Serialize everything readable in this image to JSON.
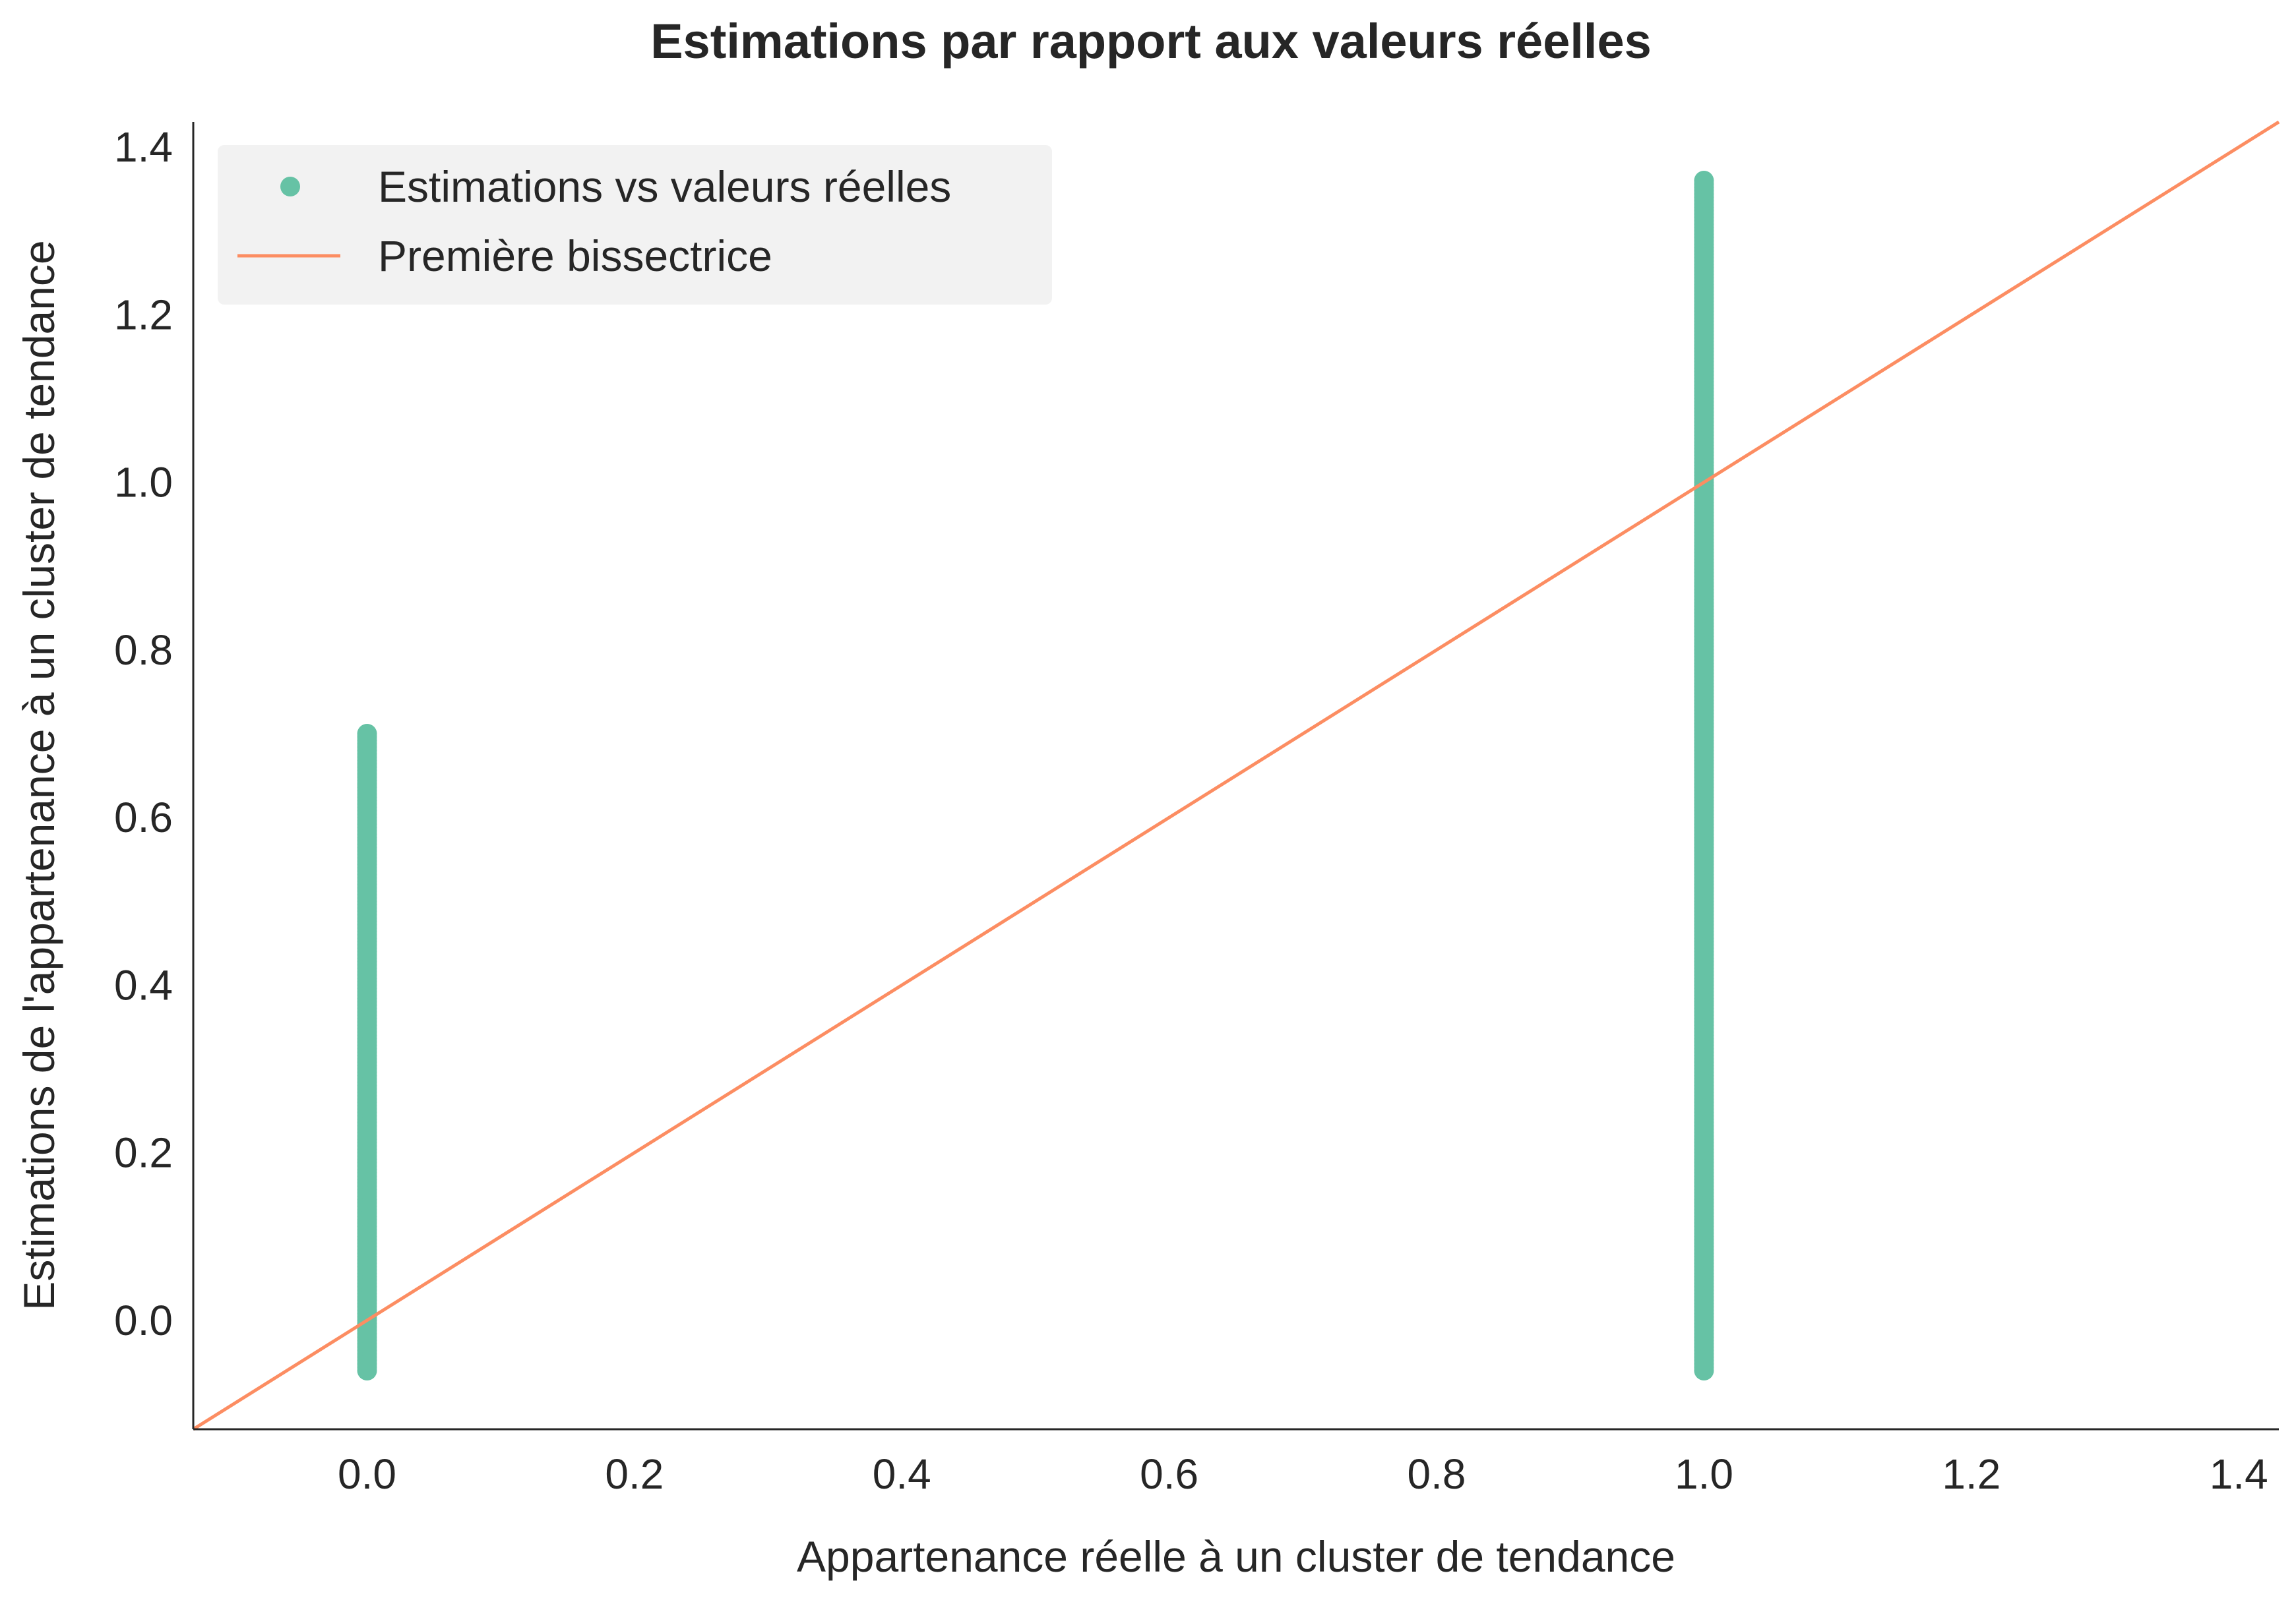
{
  "chart_data": {
    "type": "scatter",
    "title": "Estimations par rapport aux valeurs réelles",
    "xlabel": "Appartenance réelle à un cluster de tendance",
    "ylabel": "Estimations de l'appartenance à un cluster de tendance",
    "xlim": [
      -0.13,
      1.43
    ],
    "ylim": [
      -0.13,
      1.43
    ],
    "xticks": [
      "0.0",
      "0.2",
      "0.4",
      "0.6",
      "0.8",
      "1.0",
      "1.2",
      "1.4"
    ],
    "yticks": [
      "0.0",
      "0.2",
      "0.4",
      "0.6",
      "0.8",
      "1.0",
      "1.2",
      "1.4"
    ],
    "grid": false,
    "legend_position": "top-left",
    "colors": {
      "points": "#66c2a5",
      "line": "#fc8d62",
      "axis": "#262626",
      "legend_bg": "#f2f2f2"
    },
    "series": [
      {
        "name": "Estimations vs valeurs réelles",
        "kind": "points",
        "groups": [
          {
            "x": 0.0,
            "y_min": -0.06,
            "y_max": 0.7
          },
          {
            "x": 1.0,
            "y_min": -0.06,
            "y_max": 1.36
          }
        ]
      },
      {
        "name": "Première bissectrice",
        "kind": "line",
        "x": [
          -0.13,
          1.43
        ],
        "y": [
          -0.13,
          1.43
        ]
      }
    ]
  }
}
